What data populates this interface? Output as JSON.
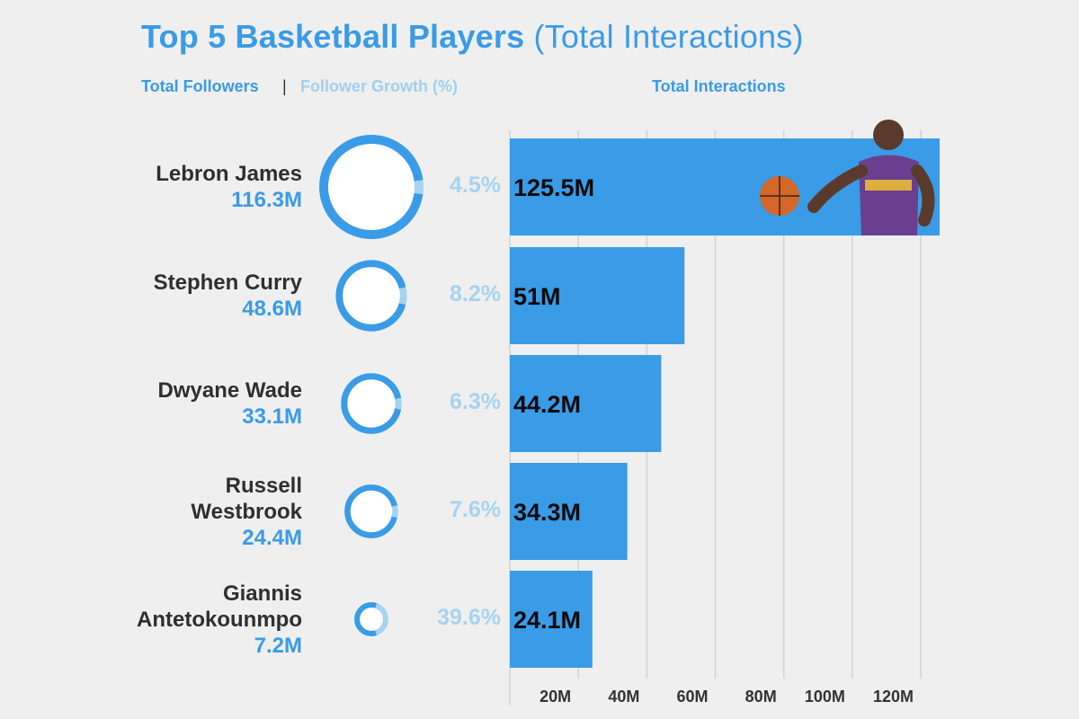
{
  "title_main": "Top 5 Basketball Players",
  "title_paren": "(Total Interactions)",
  "subtitles": {
    "followers": "Total Followers",
    "separator": "|",
    "growth": "Follower Growth (%)",
    "interactions": "Total Interactions"
  },
  "colors": {
    "accent": "#3a9be6",
    "light": "#a6d3ef",
    "background": "#efefef"
  },
  "players": [
    {
      "name_lines": [
        "Lebron James"
      ],
      "followers": "116.3M",
      "growth": "4.5%",
      "interactions": "125.5M"
    },
    {
      "name_lines": [
        "Stephen Curry"
      ],
      "followers": "48.6M",
      "growth": "8.2%",
      "interactions": "51M"
    },
    {
      "name_lines": [
        "Dwyane Wade"
      ],
      "followers": "33.1M",
      "growth": "6.3%",
      "interactions": "44.2M"
    },
    {
      "name_lines": [
        "Russell",
        "Westbrook"
      ],
      "followers": "24.4M",
      "growth": "7.6%",
      "interactions": "34.3M"
    },
    {
      "name_lines": [
        "Giannis",
        "Antetokounmpo"
      ],
      "followers": "7.2M",
      "growth": "39.6%",
      "interactions": "24.1M"
    }
  ],
  "chart_data": {
    "type": "bar",
    "orientation": "horizontal",
    "categories": [
      "Lebron James",
      "Stephen Curry",
      "Dwyane Wade",
      "Russell Westbrook",
      "Giannis Antetokounmpo"
    ],
    "series": [
      {
        "name": "Total Interactions",
        "values": [
          125.5,
          51,
          44.2,
          34.3,
          24.1
        ]
      },
      {
        "name": "Total Followers",
        "values": [
          116.3,
          48.6,
          33.1,
          24.4,
          7.2
        ]
      },
      {
        "name": "Follower Growth (%)",
        "values": [
          4.5,
          8.2,
          6.3,
          7.6,
          39.6
        ]
      }
    ],
    "value_labels": [
      "125.5M",
      "51M",
      "44.2M",
      "34.3M",
      "24.1M"
    ],
    "x_ticks": [
      20,
      40,
      60,
      80,
      100,
      120
    ],
    "x_tick_labels": [
      "20M",
      "40M",
      "60M",
      "80M",
      "100M",
      "120M"
    ],
    "xlim": [
      0,
      125.5
    ],
    "grid": true
  }
}
